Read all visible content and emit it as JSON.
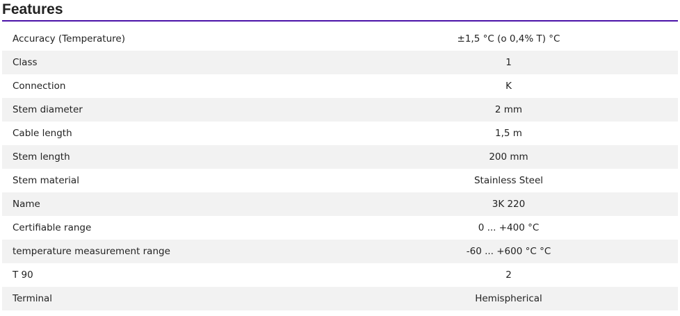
{
  "section": {
    "title": "Features"
  },
  "features": [
    {
      "label": "Accuracy (Temperature)",
      "value": "±1,5 °C (o 0,4% T) °C"
    },
    {
      "label": "Class",
      "value": "1"
    },
    {
      "label": "Connection",
      "value": "K"
    },
    {
      "label": "Stem diameter",
      "value": "2 mm"
    },
    {
      "label": "Cable length",
      "value": "1,5 m"
    },
    {
      "label": "Stem length",
      "value": "200 mm"
    },
    {
      "label": "Stem material",
      "value": "Stainless Steel"
    },
    {
      "label": "Name",
      "value": "3K 220"
    },
    {
      "label": "Certifiable range",
      "value": "0 ... +400 °C"
    },
    {
      "label": "temperature measurement range",
      "value": "-60 ... +600 °C °C"
    },
    {
      "label": "T 90",
      "value": "2"
    },
    {
      "label": "Terminal",
      "value": "Hemispherical"
    }
  ],
  "colors": {
    "accent": "#4a12a8",
    "stripe": "#f2f2f2"
  }
}
